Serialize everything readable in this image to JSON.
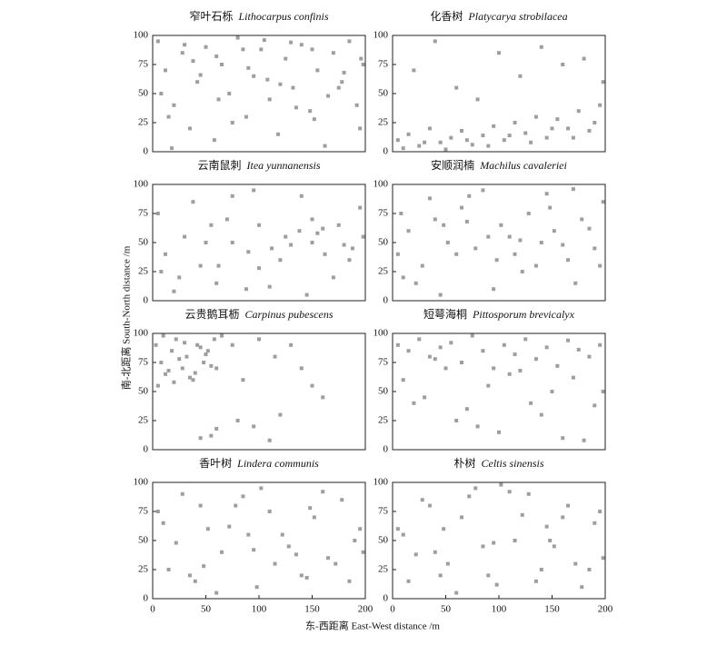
{
  "xlabel": "东-西距离 East-West distance /m",
  "ylabel": "南-北距离 South-North distance /m",
  "chart_data": [
    {
      "type": "scatter",
      "title_cn": "窄叶石栎",
      "title_latin": "Lithocarpus confinis",
      "color": "#a39c9b",
      "xlim": [
        0,
        200
      ],
      "ylim": [
        0,
        100
      ],
      "yticks": [
        0,
        25,
        50,
        75,
        100
      ],
      "x": [
        5,
        12,
        20,
        28,
        35,
        42,
        50,
        58,
        65,
        72,
        80,
        88,
        95,
        102,
        110,
        118,
        125,
        132,
        140,
        148,
        155,
        162,
        170,
        178,
        185,
        192,
        198,
        8,
        18,
        30,
        45,
        60,
        75,
        90,
        105,
        120,
        135,
        150,
        165,
        180,
        195,
        15,
        38,
        62,
        85,
        108,
        130,
        152,
        175,
        196
      ],
      "y": [
        95,
        70,
        40,
        85,
        20,
        60,
        90,
        10,
        75,
        50,
        98,
        30,
        65,
        88,
        45,
        15,
        80,
        55,
        92,
        35,
        70,
        5,
        85,
        60,
        95,
        40,
        75,
        50,
        3,
        92,
        66,
        82,
        25,
        72,
        96,
        58,
        38,
        88,
        48,
        68,
        20,
        30,
        78,
        45,
        88,
        62,
        94,
        28,
        55,
        80
      ]
    },
    {
      "type": "scatter",
      "title_cn": "化香树",
      "title_latin": "Platycarya strobilacea",
      "color": "#a39c9b",
      "xlim": [
        0,
        200
      ],
      "ylim": [
        0,
        100
      ],
      "yticks": [
        0,
        25,
        50,
        75,
        100
      ],
      "x": [
        5,
        15,
        25,
        35,
        45,
        55,
        65,
        75,
        85,
        95,
        105,
        115,
        125,
        135,
        145,
        155,
        165,
        175,
        185,
        195,
        10,
        30,
        50,
        70,
        90,
        110,
        130,
        150,
        170,
        190,
        20,
        60,
        100,
        140,
        180,
        40,
        80,
        120,
        160,
        198
      ],
      "y": [
        10,
        15,
        5,
        20,
        8,
        12,
        18,
        6,
        14,
        22,
        10,
        25,
        16,
        30,
        12,
        28,
        20,
        35,
        18,
        40,
        3,
        8,
        2,
        10,
        5,
        14,
        8,
        20,
        12,
        25,
        70,
        55,
        85,
        90,
        80,
        95,
        45,
        65,
        75,
        60
      ]
    },
    {
      "type": "scatter",
      "title_cn": "云南鼠刺",
      "title_latin": "Itea yunnanensis",
      "color": "#a39c9b",
      "xlim": [
        0,
        200
      ],
      "ylim": [
        0,
        100
      ],
      "yticks": [
        0,
        25,
        50,
        75,
        100
      ],
      "x": [
        5,
        12,
        25,
        38,
        50,
        62,
        75,
        88,
        100,
        112,
        125,
        138,
        150,
        162,
        175,
        188,
        198,
        20,
        45,
        70,
        95,
        120,
        145,
        170,
        195,
        30,
        60,
        90,
        130,
        160,
        110,
        140,
        155,
        180,
        8,
        55,
        100,
        150,
        185,
        75
      ],
      "y": [
        75,
        40,
        20,
        85,
        50,
        30,
        90,
        10,
        65,
        45,
        55,
        60,
        50,
        40,
        65,
        45,
        55,
        8,
        30,
        70,
        95,
        35,
        5,
        20,
        80,
        55,
        15,
        42,
        48,
        62,
        12,
        90,
        58,
        48,
        25,
        65,
        28,
        70,
        35,
        50
      ]
    },
    {
      "type": "scatter",
      "title_cn": "安顺润楠",
      "title_latin": "Machilus cavaleriei",
      "color": "#a39c9b",
      "xlim": [
        0,
        200
      ],
      "ylim": [
        0,
        100
      ],
      "yticks": [
        0,
        25,
        50,
        75,
        100
      ],
      "x": [
        5,
        15,
        28,
        40,
        52,
        65,
        78,
        90,
        102,
        115,
        128,
        140,
        152,
        165,
        178,
        190,
        198,
        10,
        35,
        60,
        85,
        110,
        135,
        160,
        185,
        22,
        48,
        72,
        98,
        122,
        148,
        172,
        195,
        45,
        95,
        145,
        8,
        70,
        120,
        170
      ],
      "y": [
        40,
        60,
        30,
        70,
        50,
        80,
        45,
        55,
        65,
        40,
        75,
        50,
        60,
        35,
        70,
        45,
        85,
        20,
        88,
        40,
        95,
        55,
        30,
        48,
        62,
        15,
        65,
        90,
        35,
        25,
        80,
        15,
        30,
        5,
        10,
        92,
        75,
        68,
        52,
        96
      ]
    },
    {
      "type": "scatter",
      "title_cn": "云贵鹅耳枥",
      "title_latin": "Carpinus pubescens",
      "color": "#a39c9b",
      "xlim": [
        0,
        200
      ],
      "ylim": [
        0,
        100
      ],
      "yticks": [
        0,
        25,
        50,
        75,
        100
      ],
      "x": [
        3,
        8,
        12,
        18,
        22,
        28,
        32,
        38,
        42,
        48,
        52,
        58,
        5,
        15,
        25,
        35,
        45,
        55,
        10,
        20,
        30,
        40,
        50,
        60,
        65,
        75,
        85,
        100,
        115,
        130,
        140,
        150,
        160,
        95,
        120,
        55,
        45,
        80,
        110,
        60
      ],
      "y": [
        90,
        75,
        65,
        85,
        95,
        70,
        80,
        60,
        90,
        75,
        85,
        95,
        55,
        68,
        78,
        62,
        88,
        72,
        98,
        58,
        92,
        66,
        82,
        70,
        98,
        90,
        60,
        95,
        80,
        90,
        70,
        55,
        45,
        20,
        30,
        12,
        10,
        25,
        8,
        18
      ]
    },
    {
      "type": "scatter",
      "title_cn": "短萼海桐",
      "title_latin": "Pittosporum brevicalyx",
      "color": "#a39c9b",
      "xlim": [
        0,
        200
      ],
      "ylim": [
        0,
        100
      ],
      "yticks": [
        0,
        25,
        50,
        75,
        100
      ],
      "x": [
        5,
        15,
        25,
        35,
        45,
        55,
        65,
        75,
        85,
        95,
        105,
        115,
        125,
        135,
        145,
        155,
        165,
        175,
        185,
        195,
        10,
        30,
        50,
        70,
        90,
        110,
        130,
        150,
        170,
        190,
        20,
        60,
        100,
        140,
        180,
        40,
        80,
        120,
        160,
        198
      ],
      "y": [
        90,
        85,
        95,
        80,
        88,
        92,
        75,
        98,
        85,
        70,
        90,
        82,
        95,
        78,
        88,
        72,
        94,
        86,
        80,
        90,
        60,
        45,
        70,
        35,
        55,
        65,
        40,
        50,
        62,
        38,
        40,
        25,
        15,
        30,
        8,
        78,
        20,
        68,
        10,
        50
      ]
    },
    {
      "type": "scatter",
      "title_cn": "香叶树",
      "title_latin": "Lindera communis",
      "color": "#a39c9b",
      "xlim": [
        0,
        200
      ],
      "ylim": [
        0,
        100
      ],
      "yticks": [
        0,
        25,
        50,
        75,
        100
      ],
      "xticks": [
        0,
        50,
        100,
        150,
        200
      ],
      "x": [
        5,
        15,
        28,
        40,
        52,
        65,
        78,
        90,
        102,
        115,
        128,
        140,
        152,
        165,
        178,
        190,
        198,
        10,
        35,
        60,
        85,
        110,
        135,
        160,
        185,
        22,
        48,
        72,
        98,
        122,
        148,
        172,
        195,
        45,
        95,
        145
      ],
      "y": [
        75,
        25,
        90,
        15,
        60,
        40,
        80,
        55,
        95,
        30,
        45,
        20,
        70,
        35,
        85,
        50,
        40,
        65,
        20,
        5,
        88,
        75,
        38,
        92,
        15,
        48,
        28,
        62,
        10,
        55,
        78,
        30,
        60,
        80,
        42,
        18
      ]
    },
    {
      "type": "scatter",
      "title_cn": "朴树",
      "title_latin": "Celtis sinensis",
      "color": "#a39c9b",
      "xlim": [
        0,
        200
      ],
      "ylim": [
        0,
        100
      ],
      "yticks": [
        0,
        25,
        50,
        75,
        100
      ],
      "xticks": [
        0,
        50,
        100,
        150,
        200
      ],
      "x": [
        5,
        15,
        28,
        40,
        52,
        65,
        78,
        90,
        102,
        115,
        128,
        140,
        152,
        165,
        178,
        190,
        198,
        10,
        35,
        60,
        85,
        110,
        135,
        160,
        185,
        22,
        48,
        72,
        98,
        122,
        148,
        172,
        195,
        45,
        95,
        145
      ],
      "y": [
        60,
        15,
        85,
        40,
        30,
        70,
        95,
        20,
        98,
        50,
        90,
        25,
        45,
        80,
        10,
        65,
        35,
        55,
        80,
        5,
        45,
        92,
        15,
        70,
        25,
        38,
        60,
        88,
        12,
        72,
        50,
        30,
        75,
        20,
        48,
        62
      ]
    }
  ]
}
